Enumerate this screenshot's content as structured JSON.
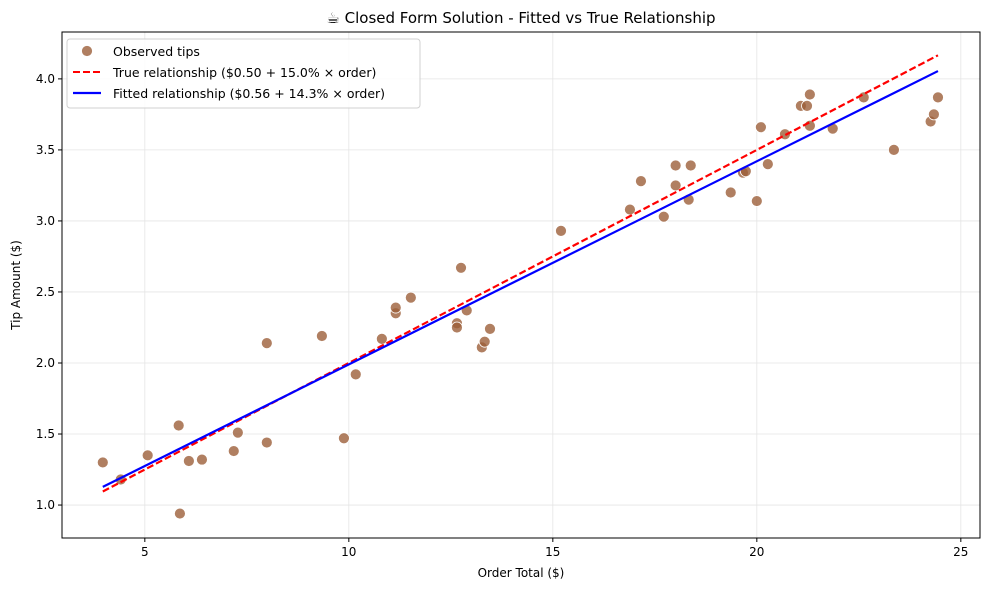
{
  "chart_data": {
    "type": "scatter",
    "title": "☕ Closed Form Solution - Fitted vs True Relationship",
    "xlabel": "Order Total ($)",
    "ylabel": "Tip Amount ($)",
    "xlim": [
      2.97,
      25.47
    ],
    "ylim": [
      0.768,
      4.33
    ],
    "xticks": [
      5,
      10,
      15,
      20,
      25
    ],
    "yticks": [
      1.0,
      1.5,
      2.0,
      2.5,
      3.0,
      3.5,
      4.0
    ],
    "xtick_labels": [
      "5",
      "10",
      "15",
      "20",
      "25"
    ],
    "ytick_labels": [
      "1.0",
      "1.5",
      "2.0",
      "2.5",
      "3.0",
      "3.5",
      "4.0"
    ],
    "grid": true,
    "legend_placement": "upper-left",
    "colors": {
      "points": "#9c5f3a",
      "true_line": "#ff0000",
      "fitted_line": "#0000ff"
    },
    "scatter": {
      "name": "Observed tips",
      "points": [
        [
          3.97,
          1.3
        ],
        [
          4.41,
          1.18
        ],
        [
          5.07,
          1.35
        ],
        [
          5.83,
          1.56
        ],
        [
          5.86,
          0.94
        ],
        [
          6.08,
          1.31
        ],
        [
          6.4,
          1.32
        ],
        [
          7.18,
          1.38
        ],
        [
          7.28,
          1.51
        ],
        [
          7.99,
          1.44
        ],
        [
          7.99,
          2.14
        ],
        [
          9.34,
          2.19
        ],
        [
          9.88,
          1.47
        ],
        [
          10.17,
          1.92
        ],
        [
          10.81,
          2.17
        ],
        [
          11.15,
          2.35
        ],
        [
          11.15,
          2.39
        ],
        [
          11.52,
          2.46
        ],
        [
          12.65,
          2.28
        ],
        [
          12.65,
          2.25
        ],
        [
          12.75,
          2.67
        ],
        [
          12.89,
          2.37
        ],
        [
          13.26,
          2.11
        ],
        [
          13.33,
          2.15
        ],
        [
          13.46,
          2.24
        ],
        [
          15.2,
          2.93
        ],
        [
          16.89,
          3.08
        ],
        [
          17.16,
          3.28
        ],
        [
          17.72,
          3.03
        ],
        [
          18.01,
          3.39
        ],
        [
          18.01,
          3.25
        ],
        [
          18.33,
          3.15
        ],
        [
          18.38,
          3.39
        ],
        [
          19.36,
          3.2
        ],
        [
          19.66,
          3.34
        ],
        [
          19.73,
          3.35
        ],
        [
          20.0,
          3.14
        ],
        [
          20.1,
          3.66
        ],
        [
          20.27,
          3.4
        ],
        [
          20.69,
          3.61
        ],
        [
          21.08,
          3.81
        ],
        [
          21.23,
          3.81
        ],
        [
          21.3,
          3.89
        ],
        [
          21.3,
          3.67
        ],
        [
          21.86,
          3.65
        ],
        [
          22.62,
          3.87
        ],
        [
          23.36,
          3.5
        ],
        [
          24.26,
          3.7
        ],
        [
          24.34,
          3.75
        ],
        [
          24.44,
          3.87
        ]
      ]
    },
    "lines": [
      {
        "name": "True relationship ($0.50 + 15.0% × order)",
        "intercept": 0.5,
        "slope": 0.15,
        "style": "dashed",
        "x_range": [
          3.97,
          24.44
        ]
      },
      {
        "name": "Fitted relationship ($0.56 + 14.3% × order)",
        "intercept": 0.56,
        "slope": 0.143,
        "style": "solid",
        "x_range": [
          3.97,
          24.44
        ]
      }
    ]
  }
}
